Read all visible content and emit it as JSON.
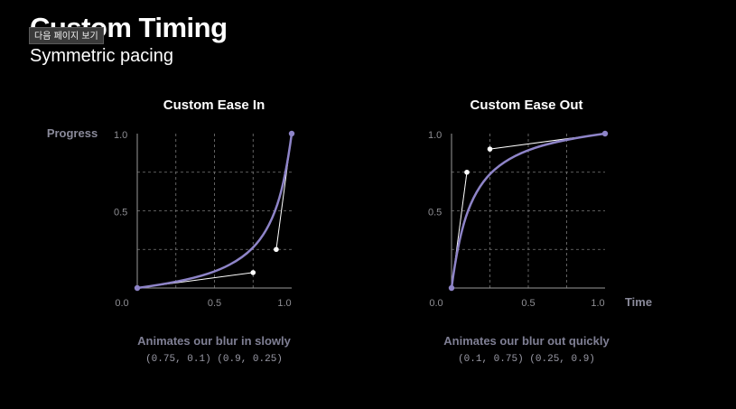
{
  "slide": {
    "title": "Custom Timing",
    "subtitle": "Symmetric pacing",
    "tooltip": "다음 페이지 보기"
  },
  "axes": {
    "y_name": "Progress",
    "x_name": "Time"
  },
  "colors": {
    "background": "#000000",
    "curve": "#8e84c8",
    "control_point": "#ffffff",
    "axis": "#9a9a9a",
    "grid": "#7a7a7a",
    "muted_text": "#8a8a9a"
  },
  "chart_data": [
    {
      "type": "line",
      "title": "Custom Ease In",
      "caption": "Animates our blur in slowly",
      "caption_code": "(0.75, 0.1) (0.9, 0.25)",
      "control_points": [
        [
          0.75,
          0.1
        ],
        [
          0.9,
          0.25
        ]
      ],
      "series": [
        {
          "points": [
            [
              0,
              0
            ],
            [
              0.75,
              0.1
            ],
            [
              0.9,
              0.25
            ],
            [
              1,
              1
            ]
          ]
        }
      ],
      "x_ticks": [
        "0.0",
        "0.5",
        "1.0"
      ],
      "y_ticks": [
        "0.5",
        "1.0"
      ],
      "xlim": [
        0,
        1
      ],
      "ylim": [
        0,
        1
      ],
      "grid": true
    },
    {
      "type": "line",
      "title": "Custom Ease Out",
      "caption": "Animates our blur out quickly",
      "caption_code": "(0.1, 0.75) (0.25, 0.9)",
      "control_points": [
        [
          0.1,
          0.75
        ],
        [
          0.25,
          0.9
        ]
      ],
      "series": [
        {
          "points": [
            [
              0,
              0
            ],
            [
              0.1,
              0.75
            ],
            [
              0.25,
              0.9
            ],
            [
              1,
              1
            ]
          ]
        }
      ],
      "x_ticks": [
        "0.0",
        "0.5",
        "1.0"
      ],
      "y_ticks": [
        "0.5",
        "1.0"
      ],
      "xlim": [
        0,
        1
      ],
      "ylim": [
        0,
        1
      ],
      "grid": true
    }
  ]
}
